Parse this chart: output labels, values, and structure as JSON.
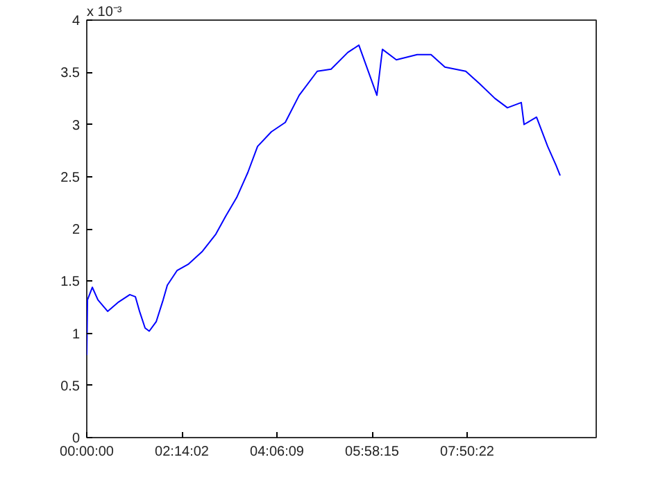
{
  "chart_data": {
    "type": "line",
    "annotations": [
      "x 10⁻³"
    ],
    "x": [
      0.365,
      0.379,
      0.474,
      0.584,
      0.775,
      0.993,
      1.211,
      1.32,
      1.402,
      1.511,
      1.593,
      1.729,
      1.866,
      1.948,
      2.138,
      2.357,
      2.629,
      2.902,
      3.093,
      3.311,
      3.53,
      3.721,
      3.993,
      4.266,
      4.539,
      4.894,
      5.166,
      5.494,
      5.712,
      6.066,
      6.175,
      6.448,
      6.857,
      7.13,
      7.403,
      7.812,
      8.085,
      8.385,
      8.631,
      8.903,
      8.958,
      9.203,
      9.422,
      9.585,
      9.667
    ],
    "series": [
      {
        "color": "#0000ff",
        "values": [
          0.79,
          1.32,
          1.44,
          1.32,
          1.21,
          1.3,
          1.37,
          1.35,
          1.21,
          1.05,
          1.02,
          1.11,
          1.32,
          1.46,
          1.6,
          1.66,
          1.78,
          1.95,
          2.12,
          2.3,
          2.54,
          2.79,
          2.93,
          3.02,
          3.28,
          3.51,
          3.53,
          3.69,
          3.76,
          3.28,
          3.72,
          3.62,
          3.67,
          3.67,
          3.55,
          3.51,
          3.39,
          3.25,
          3.16,
          3.21,
          3.0,
          3.07,
          2.79,
          2.61,
          2.51
        ]
      }
    ],
    "xlim": [
      0.365,
      10.376
    ],
    "xticks": [
      {
        "value": 0.3653,
        "label": "00:00:00"
      },
      {
        "value": 2.2339,
        "label": "02:14:02"
      },
      {
        "value": 4.1025,
        "label": "04:06:09"
      },
      {
        "value": 5.9708,
        "label": "05:58:15"
      },
      {
        "value": 7.8394,
        "label": "07:50:22"
      }
    ],
    "ylim": [
      0,
      4
    ],
    "yticks": [
      0,
      0.5,
      1,
      1.5,
      2,
      2.5,
      3,
      3.5,
      4
    ],
    "grid": false,
    "marker": "none",
    "line_style": "solid"
  }
}
